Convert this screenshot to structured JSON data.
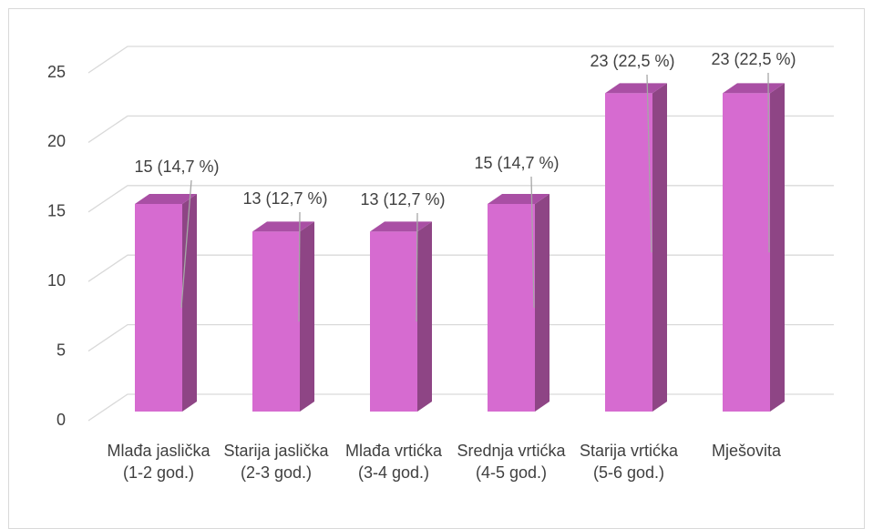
{
  "chart_data": {
    "type": "bar3d",
    "categories": [
      "Mlađa jaslička (1-2 god.)",
      "Starija jaslička (2-3 god.)",
      "Mlađa vrtićka (3-4 god.)",
      "Srednja vrtićka (4-5 god.)",
      "Starija vrtićka (5-6 god.)",
      "Mješovita"
    ],
    "values": [
      15,
      13,
      13,
      15,
      23,
      23
    ],
    "value_labels": [
      "15 (14,7 %)",
      "13 (12,7 %)",
      "13 (12,7 %)",
      "15 (14,7 %)",
      "23 (22,5 %)",
      "23 (22,5 %)"
    ],
    "color": "#d66bd0",
    "ylim": [
      0,
      25
    ],
    "yticks": [
      0,
      5,
      10,
      15,
      20,
      25
    ],
    "grid": true
  }
}
